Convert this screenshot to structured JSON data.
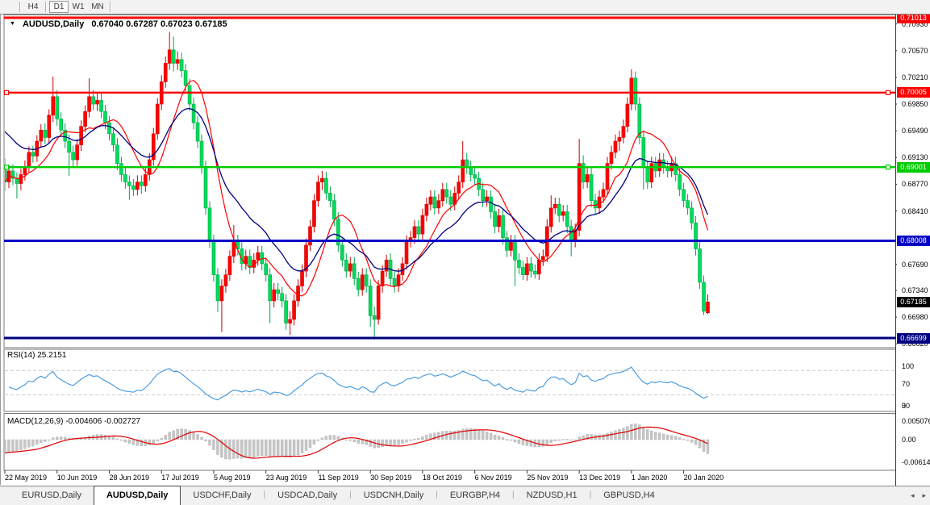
{
  "toolbar": {
    "buttons": [
      {
        "label": "H4",
        "active": false
      },
      {
        "label": "D1",
        "active": true
      },
      {
        "label": "W1",
        "active": false
      },
      {
        "label": "MN",
        "active": false
      }
    ]
  },
  "chart": {
    "symbol_label": "AUDUSD,Daily",
    "ohlc_label": "0.67040 0.67287 0.67023 0.67185",
    "symbol_dropdown_icon": "▼",
    "levels": [
      {
        "price": 0.71013,
        "color": "#ff0000",
        "width": 3,
        "markers": false
      },
      {
        "price": 0.70005,
        "color": "#ff0000",
        "width": 2.4,
        "markers": true
      },
      {
        "price": 0.69001,
        "color": "#00cc00",
        "width": 2.4,
        "markers": true
      },
      {
        "price": 0.68008,
        "color": "#0000c8",
        "width": 3,
        "markers": false
      },
      {
        "price": 0.66699,
        "color": "#000080",
        "width": 3,
        "markers": false
      }
    ],
    "price_axis": {
      "ticks": [
        0.7093,
        0.7057,
        0.7021,
        0.6985,
        0.6949,
        0.6913,
        0.6877,
        0.6841,
        0.6769,
        0.6734,
        0.6698,
        0.6662
      ],
      "badges": [
        {
          "text": "0.71013",
          "price": 0.71013,
          "bg": "#ff0000"
        },
        {
          "text": "0.70005",
          "price": 0.70005,
          "bg": "#ff0000"
        },
        {
          "text": "0.69001",
          "price": 0.69001,
          "bg": "#00cc00"
        },
        {
          "text": "0.68008",
          "price": 0.68008,
          "bg": "#0000c8"
        },
        {
          "text": "0.67185",
          "price": 0.67185,
          "bg": "#000000"
        },
        {
          "text": "0.66699",
          "price": 0.66699,
          "bg": "#000080"
        }
      ]
    }
  },
  "rsi": {
    "label": "RSI(14) 25.2151",
    "period": 14,
    "last_value": 25.2151,
    "line_color": "#3e96e0",
    "level_lines": [
      70,
      30
    ],
    "axis_labels": [
      {
        "text": "100",
        "v": 100
      },
      {
        "text": "70",
        "v": 70
      },
      {
        "text": "30",
        "v": 30
      },
      {
        "text": "0",
        "v": 0
      }
    ]
  },
  "macd": {
    "label": "MACD(12,26,9) -0.004606 -0.002727",
    "fast": 12,
    "slow": 26,
    "signal": 9,
    "last_main": -0.004606,
    "last_signal": -0.002727,
    "histogram_color": "#c6c6c6",
    "signal_color": "#e00000",
    "axis_labels": [
      {
        "text": "0.005076",
        "v": 0.005076
      },
      {
        "text": "0.00",
        "v": 0
      },
      {
        "text": "-0.006148",
        "v": -0.006148
      }
    ]
  },
  "timeline": {
    "dates": [
      "22 May 2019",
      "10 Jun 2019",
      "28 Jun 2019",
      "17 Jul 2019",
      "5 Aug 2019",
      "23 Aug 2019",
      "11 Sep 2019",
      "30 Sep 2019",
      "18 Oct 2019",
      "6 Nov 2019",
      "25 Nov 2019",
      "13 Dec 2019",
      "1 Jan 2020",
      "20 Jan 2020"
    ],
    "label_every": 13
  },
  "tabs": {
    "items": [
      {
        "label": "EURUSD,Daily",
        "active": false
      },
      {
        "label": "AUDUSD,Daily",
        "active": true
      },
      {
        "label": "USDCHF,Daily",
        "active": false
      },
      {
        "label": "USDCAD,Daily",
        "active": false
      },
      {
        "label": "USDCNH,Daily",
        "active": false
      },
      {
        "label": "EURGBP,H4",
        "active": false
      },
      {
        "label": "NZDUSD,H1",
        "active": false
      },
      {
        "label": "GBPUSD,H4",
        "active": false
      }
    ],
    "scroll_left_icon": "◂",
    "scroll_right_icon": "▸"
  },
  "chart_data": {
    "type": "candlestick",
    "symbol": "AUDUSD",
    "timeframe": "Daily",
    "title": "AUDUSD,Daily",
    "last_ohlc": {
      "open": 0.6704,
      "high": 0.67287,
      "low": 0.67023,
      "close": 0.67185
    },
    "bull_color": "#ff0000",
    "bear_color": "#00dc5a",
    "moving_averages": [
      {
        "type": "sma",
        "period": 10,
        "color": "#ff0000"
      },
      {
        "type": "ema",
        "period": 20,
        "color": "#000080"
      }
    ],
    "horizontal_levels": [
      0.71013,
      0.70005,
      0.69001,
      0.68008,
      0.66699
    ],
    "ylim": [
      0.6662,
      0.71013
    ],
    "candles": [
      [
        0.69,
        0.6912,
        0.6868,
        0.688
      ],
      [
        0.688,
        0.6903,
        0.6872,
        0.6895
      ],
      [
        0.6895,
        0.6904,
        0.6876,
        0.6885
      ],
      [
        0.6885,
        0.6893,
        0.6858,
        0.6878
      ],
      [
        0.6878,
        0.6898,
        0.6869,
        0.689
      ],
      [
        0.689,
        0.6909,
        0.6882,
        0.69
      ],
      [
        0.69,
        0.6928,
        0.6892,
        0.692
      ],
      [
        0.692,
        0.6929,
        0.6906,
        0.6915
      ],
      [
        0.6915,
        0.6943,
        0.6907,
        0.6935
      ],
      [
        0.6935,
        0.6958,
        0.6927,
        0.695
      ],
      [
        0.695,
        0.6959,
        0.6931,
        0.694
      ],
      [
        0.694,
        0.6978,
        0.6932,
        0.697
      ],
      [
        0.697,
        0.7022,
        0.6961,
        0.6995
      ],
      [
        0.6995,
        0.7004,
        0.6956,
        0.6965
      ],
      [
        0.6965,
        0.6974,
        0.6941,
        0.695
      ],
      [
        0.695,
        0.6959,
        0.6926,
        0.6935
      ],
      [
        0.6935,
        0.6944,
        0.6888,
        0.692
      ],
      [
        0.692,
        0.6929,
        0.6901,
        0.691
      ],
      [
        0.691,
        0.6938,
        0.6902,
        0.693
      ],
      [
        0.693,
        0.6963,
        0.6922,
        0.6955
      ],
      [
        0.6955,
        0.6983,
        0.6947,
        0.6975
      ],
      [
        0.6975,
        0.702,
        0.6967,
        0.6995
      ],
      [
        0.6995,
        0.7004,
        0.6977,
        0.6985
      ],
      [
        0.6985,
        0.6999,
        0.6976,
        0.699
      ],
      [
        0.699,
        0.6999,
        0.6966,
        0.6975
      ],
      [
        0.6975,
        0.6984,
        0.6951,
        0.696
      ],
      [
        0.696,
        0.6969,
        0.6936,
        0.6945
      ],
      [
        0.6945,
        0.6954,
        0.6921,
        0.693
      ],
      [
        0.693,
        0.6939,
        0.6896,
        0.6905
      ],
      [
        0.6905,
        0.6914,
        0.6881,
        0.689
      ],
      [
        0.689,
        0.6899,
        0.6871,
        0.688
      ],
      [
        0.688,
        0.6889,
        0.6856,
        0.6875
      ],
      [
        0.6875,
        0.6884,
        0.6861,
        0.687
      ],
      [
        0.687,
        0.6889,
        0.6862,
        0.688
      ],
      [
        0.688,
        0.6889,
        0.6864,
        0.6875
      ],
      [
        0.6875,
        0.6899,
        0.6867,
        0.689
      ],
      [
        0.689,
        0.6919,
        0.6882,
        0.691
      ],
      [
        0.691,
        0.6953,
        0.6902,
        0.6945
      ],
      [
        0.6945,
        0.6993,
        0.6937,
        0.6985
      ],
      [
        0.6985,
        0.7024,
        0.6977,
        0.7015
      ],
      [
        0.7015,
        0.7049,
        0.7007,
        0.704
      ],
      [
        0.704,
        0.7082,
        0.7031,
        0.7058
      ],
      [
        0.7058,
        0.7076,
        0.7029,
        0.704
      ],
      [
        0.704,
        0.7056,
        0.7031,
        0.7045
      ],
      [
        0.7045,
        0.7054,
        0.7021,
        0.703
      ],
      [
        0.703,
        0.7039,
        0.7001,
        0.701
      ],
      [
        0.701,
        0.7019,
        0.6976,
        0.6985
      ],
      [
        0.6985,
        0.6994,
        0.6951,
        0.696
      ],
      [
        0.696,
        0.6969,
        0.6926,
        0.6935
      ],
      [
        0.6935,
        0.6944,
        0.6891,
        0.69
      ],
      [
        0.69,
        0.6909,
        0.6836,
        0.6845
      ],
      [
        0.6845,
        0.6854,
        0.6791,
        0.68
      ],
      [
        0.68,
        0.6809,
        0.6746,
        0.6755
      ],
      [
        0.6755,
        0.6764,
        0.6705,
        0.672
      ],
      [
        0.672,
        0.6749,
        0.6678,
        0.674
      ],
      [
        0.674,
        0.6763,
        0.6731,
        0.6755
      ],
      [
        0.6755,
        0.6788,
        0.6747,
        0.678
      ],
      [
        0.678,
        0.6822,
        0.6771,
        0.68
      ],
      [
        0.68,
        0.6809,
        0.6781,
        0.679
      ],
      [
        0.679,
        0.6799,
        0.6761,
        0.677
      ],
      [
        0.677,
        0.6789,
        0.6762,
        0.678
      ],
      [
        0.678,
        0.6789,
        0.6756,
        0.6765
      ],
      [
        0.6765,
        0.6784,
        0.6757,
        0.6775
      ],
      [
        0.6775,
        0.6794,
        0.6767,
        0.6785
      ],
      [
        0.6785,
        0.6794,
        0.6761,
        0.677
      ],
      [
        0.677,
        0.6779,
        0.6746,
        0.6755
      ],
      [
        0.6755,
        0.6764,
        0.669,
        0.672
      ],
      [
        0.672,
        0.6744,
        0.6711,
        0.6735
      ],
      [
        0.6735,
        0.6744,
        0.6721,
        0.673
      ],
      [
        0.673,
        0.6739,
        0.6711,
        0.672
      ],
      [
        0.672,
        0.6729,
        0.6681,
        0.669
      ],
      [
        0.669,
        0.6706,
        0.6674,
        0.6695
      ],
      [
        0.6695,
        0.6729,
        0.6687,
        0.672
      ],
      [
        0.672,
        0.6749,
        0.6712,
        0.674
      ],
      [
        0.674,
        0.6769,
        0.6732,
        0.676
      ],
      [
        0.676,
        0.6804,
        0.6752,
        0.6795
      ],
      [
        0.6795,
        0.6829,
        0.6787,
        0.682
      ],
      [
        0.682,
        0.6864,
        0.6812,
        0.6855
      ],
      [
        0.6855,
        0.6889,
        0.6847,
        0.688
      ],
      [
        0.688,
        0.6895,
        0.6869,
        0.6885
      ],
      [
        0.6885,
        0.6894,
        0.6856,
        0.6865
      ],
      [
        0.6865,
        0.6874,
        0.6846,
        0.6855
      ],
      [
        0.6855,
        0.6864,
        0.6821,
        0.683
      ],
      [
        0.683,
        0.6839,
        0.6786,
        0.6795
      ],
      [
        0.6795,
        0.6804,
        0.6766,
        0.6775
      ],
      [
        0.6775,
        0.6784,
        0.6751,
        0.676
      ],
      [
        0.676,
        0.6779,
        0.6752,
        0.677
      ],
      [
        0.677,
        0.6779,
        0.6741,
        0.675
      ],
      [
        0.675,
        0.6759,
        0.6726,
        0.6735
      ],
      [
        0.6735,
        0.6764,
        0.6727,
        0.6755
      ],
      [
        0.6755,
        0.6764,
        0.6731,
        0.674
      ],
      [
        0.674,
        0.6749,
        0.6685,
        0.67
      ],
      [
        0.67,
        0.6712,
        0.6668,
        0.6695
      ],
      [
        0.6695,
        0.6748,
        0.6688,
        0.674
      ],
      [
        0.674,
        0.6768,
        0.6731,
        0.676
      ],
      [
        0.676,
        0.6782,
        0.6752,
        0.6775
      ],
      [
        0.6775,
        0.6784,
        0.6741,
        0.675
      ],
      [
        0.675,
        0.6759,
        0.6731,
        0.674
      ],
      [
        0.674,
        0.6764,
        0.6732,
        0.6755
      ],
      [
        0.6755,
        0.6779,
        0.6747,
        0.677
      ],
      [
        0.677,
        0.6808,
        0.6762,
        0.68
      ],
      [
        0.68,
        0.6814,
        0.6792,
        0.6805
      ],
      [
        0.6805,
        0.6829,
        0.6797,
        0.682
      ],
      [
        0.682,
        0.6829,
        0.6801,
        0.681
      ],
      [
        0.681,
        0.6844,
        0.6802,
        0.6835
      ],
      [
        0.6835,
        0.6859,
        0.6827,
        0.685
      ],
      [
        0.685,
        0.6869,
        0.6842,
        0.686
      ],
      [
        0.686,
        0.6869,
        0.6836,
        0.6845
      ],
      [
        0.6845,
        0.6864,
        0.6837,
        0.6855
      ],
      [
        0.6855,
        0.6879,
        0.6847,
        0.687
      ],
      [
        0.687,
        0.6879,
        0.6851,
        0.686
      ],
      [
        0.686,
        0.6869,
        0.6841,
        0.685
      ],
      [
        0.685,
        0.6874,
        0.6842,
        0.6865
      ],
      [
        0.6865,
        0.6889,
        0.6857,
        0.688
      ],
      [
        0.688,
        0.6935,
        0.6872,
        0.691
      ],
      [
        0.691,
        0.6919,
        0.6891,
        0.69
      ],
      [
        0.69,
        0.6909,
        0.6881,
        0.689
      ],
      [
        0.689,
        0.6899,
        0.6876,
        0.6885
      ],
      [
        0.6885,
        0.6894,
        0.6861,
        0.687
      ],
      [
        0.687,
        0.6879,
        0.6846,
        0.6855
      ],
      [
        0.6855,
        0.6869,
        0.6847,
        0.686
      ],
      [
        0.686,
        0.6869,
        0.6831,
        0.684
      ],
      [
        0.684,
        0.6849,
        0.6811,
        0.682
      ],
      [
        0.682,
        0.6844,
        0.6812,
        0.6835
      ],
      [
        0.6835,
        0.6844,
        0.6796,
        0.6805
      ],
      [
        0.6805,
        0.6814,
        0.6779,
        0.6788
      ],
      [
        0.6788,
        0.6809,
        0.678,
        0.68
      ],
      [
        0.68,
        0.6809,
        0.674,
        0.6775
      ],
      [
        0.6775,
        0.6784,
        0.6756,
        0.6765
      ],
      [
        0.6765,
        0.6774,
        0.6748,
        0.6755
      ],
      [
        0.6755,
        0.6779,
        0.6747,
        0.677
      ],
      [
        0.677,
        0.6779,
        0.6751,
        0.676
      ],
      [
        0.676,
        0.6769,
        0.675,
        0.6756
      ],
      [
        0.6756,
        0.6784,
        0.6748,
        0.6775
      ],
      [
        0.6775,
        0.6789,
        0.6767,
        0.678
      ],
      [
        0.678,
        0.683,
        0.6772,
        0.682
      ],
      [
        0.682,
        0.6862,
        0.6812,
        0.6845
      ],
      [
        0.6845,
        0.6859,
        0.6837,
        0.685
      ],
      [
        0.685,
        0.6859,
        0.6826,
        0.6835
      ],
      [
        0.6835,
        0.6849,
        0.6827,
        0.684
      ],
      [
        0.684,
        0.6849,
        0.6811,
        0.682
      ],
      [
        0.682,
        0.6829,
        0.678,
        0.68
      ],
      [
        0.68,
        0.6824,
        0.6792,
        0.6815
      ],
      [
        0.6815,
        0.6938,
        0.6807,
        0.6905
      ],
      [
        0.6905,
        0.6916,
        0.6871,
        0.688
      ],
      [
        0.688,
        0.6899,
        0.6872,
        0.689
      ],
      [
        0.689,
        0.6899,
        0.6846,
        0.6855
      ],
      [
        0.6855,
        0.6864,
        0.6836,
        0.6845
      ],
      [
        0.6845,
        0.6869,
        0.6837,
        0.686
      ],
      [
        0.686,
        0.6879,
        0.6852,
        0.687
      ],
      [
        0.687,
        0.6914,
        0.6862,
        0.6905
      ],
      [
        0.6905,
        0.6929,
        0.6897,
        0.692
      ],
      [
        0.692,
        0.6944,
        0.6912,
        0.6935
      ],
      [
        0.6935,
        0.6949,
        0.6922,
        0.694
      ],
      [
        0.694,
        0.6964,
        0.6932,
        0.6955
      ],
      [
        0.6955,
        0.6994,
        0.6947,
        0.6985
      ],
      [
        0.6985,
        0.7032,
        0.6977,
        0.702
      ],
      [
        0.702,
        0.7029,
        0.6976,
        0.6985
      ],
      [
        0.6985,
        0.6994,
        0.6931,
        0.694
      ],
      [
        0.694,
        0.6949,
        0.687,
        0.69
      ],
      [
        0.69,
        0.6909,
        0.6871,
        0.688
      ],
      [
        0.688,
        0.6914,
        0.6872,
        0.6905
      ],
      [
        0.6905,
        0.6914,
        0.6886,
        0.6895
      ],
      [
        0.6895,
        0.6919,
        0.6887,
        0.691
      ],
      [
        0.691,
        0.6919,
        0.6891,
        0.69
      ],
      [
        0.69,
        0.6909,
        0.6886,
        0.6895
      ],
      [
        0.6895,
        0.6914,
        0.6887,
        0.6905
      ],
      [
        0.6905,
        0.6914,
        0.6881,
        0.689
      ],
      [
        0.689,
        0.6899,
        0.6861,
        0.687
      ],
      [
        0.687,
        0.6879,
        0.6846,
        0.6855
      ],
      [
        0.6855,
        0.6864,
        0.6836,
        0.6845
      ],
      [
        0.6845,
        0.6854,
        0.6816,
        0.6825
      ],
      [
        0.6825,
        0.6834,
        0.6781,
        0.679
      ],
      [
        0.679,
        0.6799,
        0.6736,
        0.6745
      ],
      [
        0.6745,
        0.6754,
        0.6701,
        0.6706
      ],
      [
        0.6704,
        0.67287,
        0.67023,
        0.67185
      ]
    ],
    "indicators": {
      "rsi": {
        "period": 14,
        "last": 25.2151
      },
      "macd": {
        "fast": 12,
        "slow": 26,
        "signal": 9,
        "last_main": -0.004606,
        "last_signal": -0.002727
      }
    }
  }
}
